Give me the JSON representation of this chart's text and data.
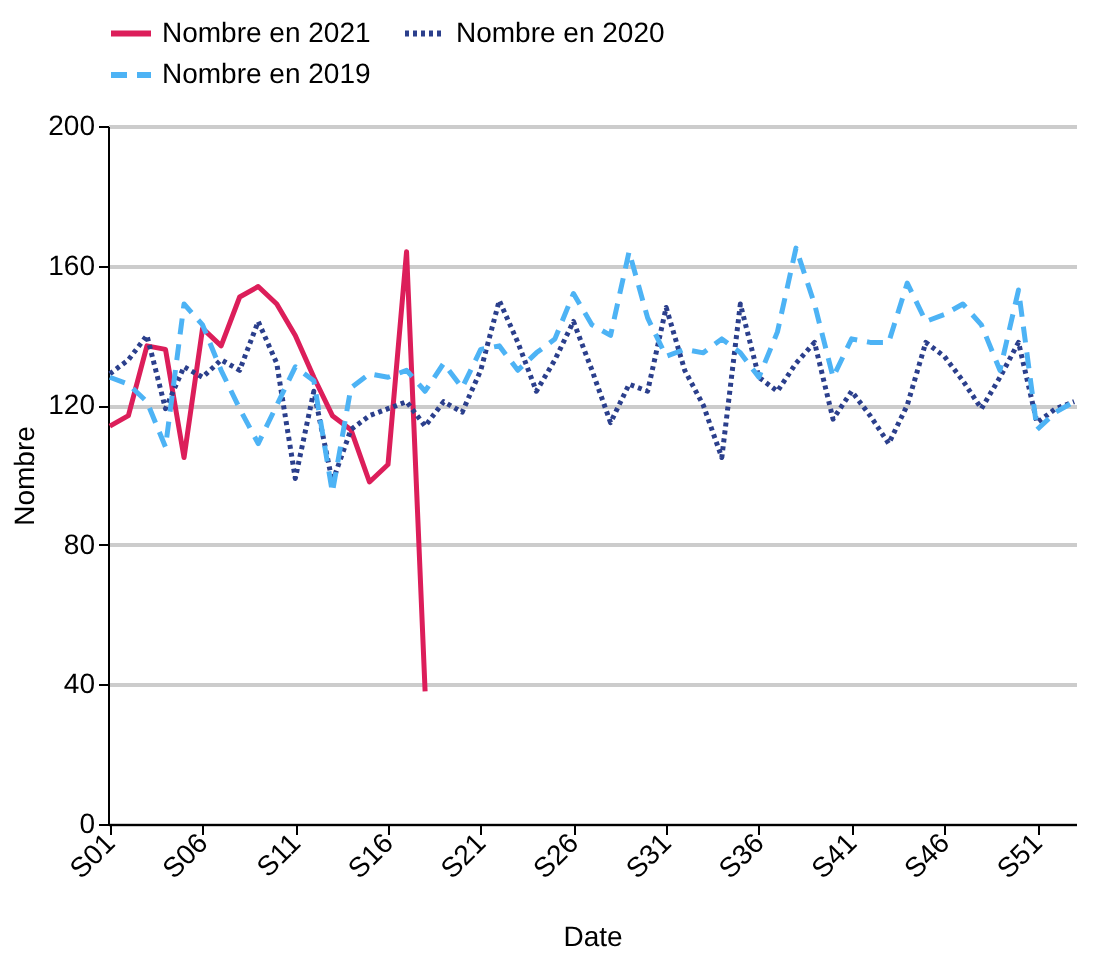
{
  "chart_data": {
    "type": "line",
    "xlabel": "Date",
    "ylabel": "Nombre",
    "categories": [
      "S01",
      null,
      null,
      null,
      null,
      "S06",
      null,
      null,
      null,
      null,
      "S11",
      null,
      null,
      null,
      null,
      "S16",
      null,
      null,
      null,
      null,
      "S21",
      null,
      null,
      null,
      null,
      "S26",
      null,
      null,
      null,
      null,
      "S31",
      null,
      null,
      null,
      null,
      "S36",
      null,
      null,
      null,
      null,
      "S41",
      null,
      null,
      null,
      null,
      "S46",
      null,
      null,
      null,
      null,
      "S51",
      null,
      null
    ],
    "ylim": [
      0,
      200
    ],
    "yticks": [
      0,
      40,
      80,
      120,
      160,
      200
    ],
    "grid": "y",
    "legend": "top",
    "series": [
      {
        "name": "Nombre en 2021",
        "color": "#dc1e5a",
        "line_style": "solid",
        "values": [
          114,
          117,
          137,
          136,
          105,
          142,
          137,
          151,
          154,
          149,
          140,
          128,
          117,
          113,
          98,
          103,
          164,
          38,
          null,
          null,
          null,
          null,
          null,
          null,
          null,
          null,
          null,
          null,
          null,
          null,
          null,
          null,
          null,
          null,
          null,
          null,
          null,
          null,
          null,
          null,
          null,
          null,
          null,
          null,
          null,
          null,
          null,
          null,
          null,
          null,
          null,
          null,
          null
        ]
      },
      {
        "name": "Nombre en 2020",
        "color": "#2b3f8c",
        "line_style": "dotted",
        "values": [
          129,
          133,
          140,
          119,
          131,
          128,
          133,
          130,
          144,
          132,
          99,
          124,
          98,
          113,
          117,
          119,
          121,
          114,
          121,
          118,
          130,
          150,
          138,
          124,
          133,
          144,
          130,
          115,
          126,
          124,
          148,
          130,
          120,
          105,
          149,
          128,
          124,
          132,
          138,
          116,
          124,
          117,
          109,
          120,
          138,
          134,
          127,
          119,
          128,
          138,
          115,
          119,
          121
        ]
      },
      {
        "name": "Nombre en 2019",
        "color": "#4db3f5",
        "line_style": "dashed",
        "values": [
          128,
          126,
          121,
          108,
          149,
          143,
          130,
          119,
          109,
          120,
          131,
          127,
          95,
          125,
          129,
          128,
          130,
          124,
          132,
          125,
          136,
          137,
          130,
          135,
          139,
          152,
          143,
          140,
          164,
          145,
          134,
          136,
          135,
          139,
          135,
          128,
          141,
          165,
          149,
          128,
          139,
          138,
          138,
          155,
          144,
          146,
          149,
          143,
          130,
          153,
          113,
          118,
          121
        ]
      }
    ]
  }
}
